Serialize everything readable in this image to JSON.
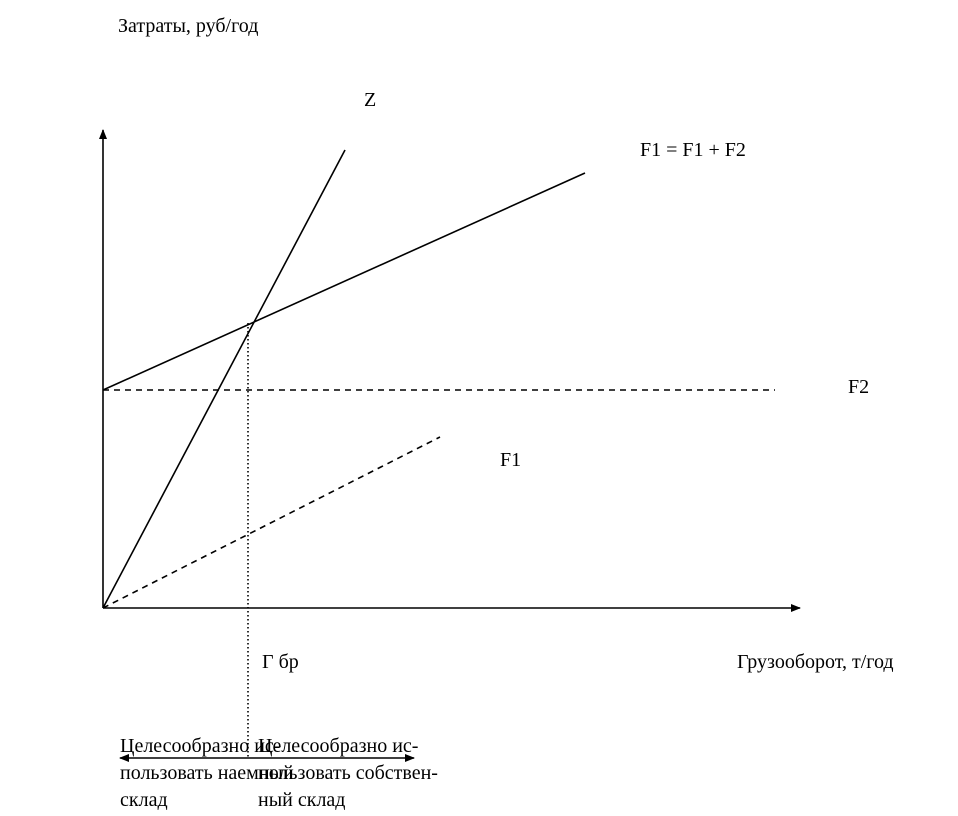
{
  "y_axis_label": "Затраты, руб/год",
  "x_axis_label": "Грузооборот, т/год",
  "lines": {
    "z": "Z",
    "total": "F1 = F1 + F2",
    "f2": "F2",
    "f1": "F1"
  },
  "breakeven_label": "Г бр",
  "regions": {
    "left": [
      "Целесообразно ис-",
      "пользовать наемный",
      "склад"
    ],
    "right": [
      "Целесообразно ис-",
      "пользовать собствен-",
      "ный склад"
    ]
  }
}
